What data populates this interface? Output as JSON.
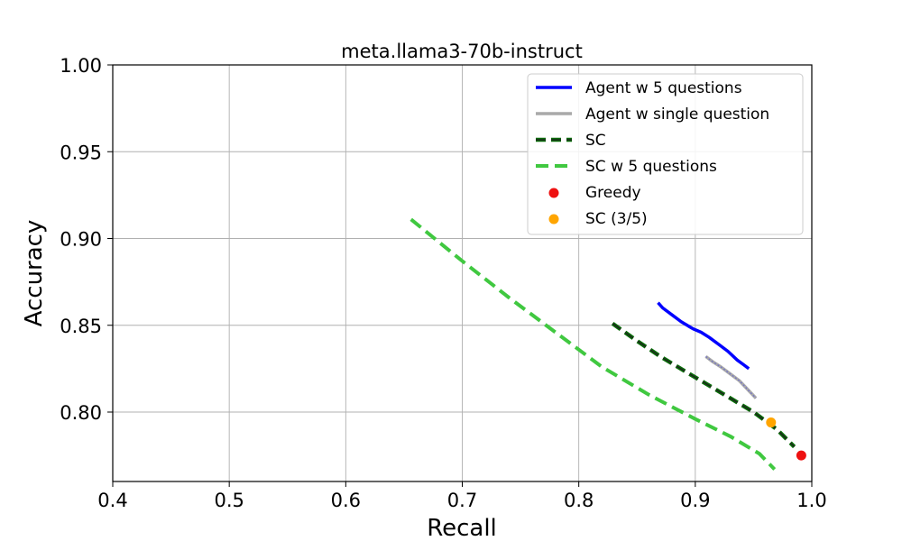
{
  "chart_data": {
    "type": "line",
    "title": "meta.llama3-70b-instruct",
    "xlabel": "Recall",
    "ylabel": "Accuracy",
    "xlim": [
      0.4,
      1.0
    ],
    "ylim": [
      0.76,
      1.0
    ],
    "x_ticks": [
      0.4,
      0.5,
      0.6,
      0.7,
      0.8,
      0.9,
      1.0
    ],
    "x_tick_labels": [
      "0.4",
      "0.5",
      "0.6",
      "0.7",
      "0.8",
      "0.9",
      "1.0"
    ],
    "y_ticks": [
      0.8,
      0.85,
      0.9,
      0.95,
      1.0
    ],
    "y_tick_labels": [
      "0.80",
      "0.85",
      "0.90",
      "0.95",
      "1.00"
    ],
    "grid": true,
    "legend_position": "top-right",
    "series": [
      {
        "name": "Agent w 5 questions",
        "kind": "line",
        "style": "solid",
        "color": "#0000ff",
        "x": [
          0.868,
          0.872,
          0.88,
          0.888,
          0.893,
          0.898,
          0.905,
          0.912,
          0.92,
          0.928,
          0.936,
          0.942,
          0.946
        ],
        "y": [
          0.863,
          0.86,
          0.856,
          0.852,
          0.85,
          0.848,
          0.846,
          0.843,
          0.839,
          0.835,
          0.83,
          0.827,
          0.825
        ]
      },
      {
        "name": "Agent w single question",
        "kind": "line",
        "style": "solid",
        "color": "#a9a9a9",
        "x": [
          0.909,
          0.915,
          0.922,
          0.93,
          0.938,
          0.945,
          0.952
        ],
        "y": [
          0.832,
          0.829,
          0.826,
          0.822,
          0.818,
          0.813,
          0.808
        ]
      },
      {
        "name": "SC",
        "kind": "line",
        "style": "dashed",
        "color": "#0a6b0a",
        "x": [
          0.829,
          0.85,
          0.87,
          0.89,
          0.91,
          0.93,
          0.95,
          0.97,
          0.985
        ],
        "y": [
          0.851,
          0.841,
          0.832,
          0.824,
          0.816,
          0.808,
          0.8,
          0.79,
          0.78
        ]
      },
      {
        "name": "SC w 5 questions",
        "kind": "line",
        "style": "dashed",
        "color": "#40c840",
        "x": [
          0.656,
          0.7,
          0.74,
          0.78,
          0.82,
          0.86,
          0.9,
          0.93,
          0.955,
          0.968
        ],
        "y": [
          0.911,
          0.887,
          0.866,
          0.846,
          0.826,
          0.81,
          0.796,
          0.786,
          0.776,
          0.767
        ]
      },
      {
        "name": "Greedy",
        "kind": "point",
        "color": "#ee1111",
        "x": [
          0.991
        ],
        "y": [
          0.775
        ]
      },
      {
        "name": "SC (3/5)",
        "kind": "point",
        "color": "#ffa500",
        "x": [
          0.965
        ],
        "y": [
          0.794
        ]
      }
    ]
  }
}
